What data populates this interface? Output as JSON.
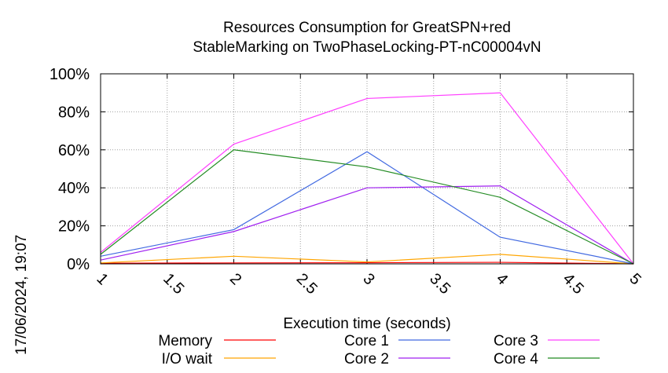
{
  "chart_data": {
    "type": "line",
    "title_lines": [
      "Resources Consumption for GreatSPN+red",
      "StableMarking on TwoPhaseLocking-PT-nC00004vN"
    ],
    "xlabel": "Execution time (seconds)",
    "ylabel": "",
    "x": [
      1,
      2,
      3,
      4,
      5
    ],
    "xlim": [
      1,
      5
    ],
    "ylim": [
      0,
      100
    ],
    "x_ticks": [
      "1",
      "1.5",
      "2",
      "2.5",
      "3",
      "3.5",
      "4",
      "4.5",
      "5"
    ],
    "y_ticks": [
      "0%",
      "20%",
      "40%",
      "60%",
      "80%",
      "100%"
    ],
    "grid": true,
    "legend_position": "bottom",
    "series": [
      {
        "name": "Memory",
        "color": "#ff0000",
        "values": [
          0.3,
          0.5,
          0.6,
          0.8,
          0
        ]
      },
      {
        "name": "I/O wait",
        "color": "#ffa500",
        "values": [
          0.5,
          4,
          1,
          5,
          0
        ]
      },
      {
        "name": "Core 1",
        "color": "#4169e1",
        "values": [
          4,
          18,
          59,
          14,
          0
        ]
      },
      {
        "name": "Core 2",
        "color": "#a020f0",
        "values": [
          2,
          17,
          40,
          41,
          0
        ]
      },
      {
        "name": "Core 3",
        "color": "#ff40ff",
        "values": [
          6,
          63,
          87,
          90,
          0
        ]
      },
      {
        "name": "Core 4",
        "color": "#228b22",
        "values": [
          5,
          60,
          51,
          35,
          0
        ]
      }
    ]
  },
  "side_label": "17/06/2024, 19:07"
}
